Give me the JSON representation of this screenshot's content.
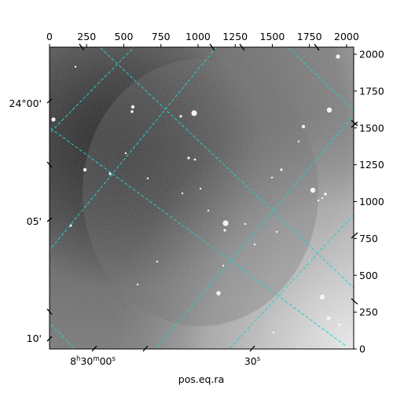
{
  "chart_data": {
    "type": "image",
    "title": "",
    "xlabel": "pos.eq.ra",
    "ylabel": "",
    "pixel_axes": {
      "x_ticks": [
        0,
        250,
        500,
        750,
        1000,
        1250,
        1500,
        1750,
        2000
      ],
      "y_ticks": [
        0,
        250,
        500,
        750,
        1000,
        1250,
        1500,
        1750,
        2000
      ],
      "x_range": [
        0,
        2048
      ],
      "y_range": [
        0,
        2048
      ]
    },
    "ra_tick_labels": [
      {
        "hms": "8",
        "h": "h",
        "mm": "30",
        "m": "m",
        "ss": "00",
        "s": "s"
      },
      {
        "hms": "",
        "h": "",
        "mm": "",
        "m": "",
        "ss": "30",
        "s": "s"
      }
    ],
    "dec_tick_labels": [
      "24°00'",
      "05'",
      "10'"
    ],
    "grid": {
      "enabled": true,
      "color": "#22cfcf",
      "style": "dashed"
    },
    "image": {
      "colormap": "gray",
      "description_colors": [
        "#262626",
        "#7a7a7a",
        "#d6d6d6"
      ]
    }
  }
}
